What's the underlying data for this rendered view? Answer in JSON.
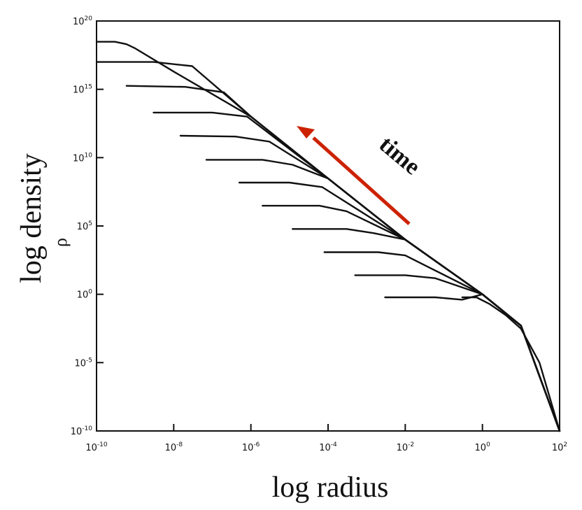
{
  "chart_data": {
    "type": "line",
    "xlabel": "log radius",
    "ylabel": "log density",
    "inner_ylabel": "ρ",
    "annotation": {
      "text": "time",
      "arrow_color": "#cc2200",
      "arrow_direction": "up-left"
    },
    "x_scale": "log",
    "y_scale": "log",
    "xlim": [
      1e-10,
      100.0
    ],
    "ylim": [
      1e-10,
      1e+20
    ],
    "x_ticks": [
      {
        "value": 1e-10,
        "base": "10",
        "exp": "-10"
      },
      {
        "value": 1e-08,
        "base": "10",
        "exp": "-8"
      },
      {
        "value": 1e-06,
        "base": "10",
        "exp": "-6"
      },
      {
        "value": 0.0001,
        "base": "10",
        "exp": "-4"
      },
      {
        "value": 0.01,
        "base": "10",
        "exp": "-2"
      },
      {
        "value": 1.0,
        "base": "10",
        "exp": "0"
      },
      {
        "value": 100.0,
        "base": "10",
        "exp": "2"
      }
    ],
    "y_ticks": [
      {
        "value": 1e-10,
        "base": "10",
        "exp": "-10"
      },
      {
        "value": 1e-05,
        "base": "10",
        "exp": "-5"
      },
      {
        "value": 1.0,
        "base": "10",
        "exp": "0"
      },
      {
        "value": 100000.0,
        "base": "10",
        "exp": "5"
      },
      {
        "value": 10000000000.0,
        "base": "10",
        "exp": "10"
      },
      {
        "value": 1000000000000000.0,
        "base": "10",
        "exp": "15"
      },
      {
        "value": 1e+20,
        "base": "10",
        "exp": "20"
      }
    ],
    "grid": false,
    "series": [
      {
        "points": [
          [
            1e-10,
            3e+18
          ],
          [
            3e-10,
            3e+18
          ],
          [
            6e-10,
            2e+18
          ],
          [
            1e-09,
            1e+18
          ],
          [
            1e-08,
            2e+16
          ],
          [
            1e-06,
            10000000000000.0
          ],
          [
            0.0001,
            300000000.0
          ],
          [
            0.01,
            10000.0
          ],
          [
            1.0,
            1.0
          ],
          [
            10.0,
            0.005
          ],
          [
            100.0,
            1e-10
          ]
        ]
      },
      {
        "points": [
          [
            1e-10,
            1e+17
          ],
          [
            3e-09,
            1e+17
          ],
          [
            3e-08,
            5e+16
          ],
          [
            1e-06,
            10000000000000.0
          ],
          [
            0.0001,
            300000000.0
          ],
          [
            0.01,
            10000.0
          ],
          [
            1.0,
            1.0
          ],
          [
            10.0,
            0.005
          ],
          [
            100.0,
            1e-10
          ]
        ]
      },
      {
        "points": [
          [
            6e-10,
            1800000000000000.0
          ],
          [
            2e-08,
            1500000000000000.0
          ],
          [
            2e-07,
            600000000000000.0
          ],
          [
            1e-06,
            10000000000000.0
          ],
          [
            0.0001,
            300000000.0
          ],
          [
            0.01,
            10000.0
          ],
          [
            1.0,
            1.0
          ],
          [
            10.0,
            0.005
          ],
          [
            100.0,
            1e-10
          ]
        ]
      },
      {
        "points": [
          [
            3e-09,
            20000000000000.0
          ],
          [
            1e-07,
            20000000000000.0
          ],
          [
            8e-07,
            10000000000000.0
          ],
          [
            0.0001,
            300000000.0
          ],
          [
            0.01,
            10000.0
          ],
          [
            1.0,
            1.0
          ],
          [
            10.0,
            0.005
          ],
          [
            100.0,
            1e-10
          ]
        ]
      },
      {
        "points": [
          [
            1.5e-08,
            400000000000.0
          ],
          [
            4e-07,
            350000000000.0
          ],
          [
            3e-06,
            150000000000.0
          ],
          [
            0.0001,
            300000000.0
          ],
          [
            0.01,
            10000.0
          ],
          [
            1.0,
            1.0
          ],
          [
            10.0,
            0.005
          ],
          [
            100.0,
            1e-10
          ]
        ]
      },
      {
        "points": [
          [
            7e-08,
            7000000000.0
          ],
          [
            2e-06,
            7000000000.0
          ],
          [
            1.2e-05,
            3000000000.0
          ],
          [
            0.0001,
            300000000.0
          ],
          [
            0.01,
            10000.0
          ],
          [
            1.0,
            1.0
          ],
          [
            10.0,
            0.005
          ],
          [
            100.0,
            1e-10
          ]
        ]
      },
      {
        "points": [
          [
            5e-07,
            150000000.0
          ],
          [
            1e-05,
            150000000.0
          ],
          [
            7e-05,
            70000000.0
          ],
          [
            0.01,
            10000.0
          ],
          [
            1.0,
            1.0
          ],
          [
            10.0,
            0.005
          ],
          [
            100.0,
            1e-10
          ]
        ]
      },
      {
        "points": [
          [
            2e-06,
            3000000.0
          ],
          [
            6e-05,
            3000000.0
          ],
          [
            0.0003,
            1200000.0
          ],
          [
            0.01,
            10000.0
          ],
          [
            1.0,
            1.0
          ],
          [
            10.0,
            0.005
          ],
          [
            100.0,
            1e-10
          ]
        ]
      },
      {
        "points": [
          [
            1.2e-05,
            60000.0
          ],
          [
            0.0003,
            60000.0
          ],
          [
            0.0015,
            30000.0
          ],
          [
            0.01,
            10000.0
          ],
          [
            1.0,
            1.0
          ],
          [
            10.0,
            0.005
          ],
          [
            100.0,
            1e-10
          ]
        ]
      },
      {
        "points": [
          [
            8e-05,
            1200.0
          ],
          [
            0.002,
            1200.0
          ],
          [
            0.01,
            700.0
          ],
          [
            1.0,
            1.0
          ],
          [
            10.0,
            0.005
          ],
          [
            100.0,
            1e-10
          ]
        ]
      },
      {
        "points": [
          [
            0.0005,
            25.0
          ],
          [
            0.01,
            25.0
          ],
          [
            0.06,
            15.0
          ],
          [
            1.0,
            1.0
          ],
          [
            10.0,
            0.005
          ],
          [
            100.0,
            1e-10
          ]
        ]
      },
      {
        "points": [
          [
            0.003,
            0.6
          ],
          [
            0.06,
            0.6
          ],
          [
            0.3,
            0.4
          ],
          [
            1.0,
            1.0
          ],
          [
            10.0,
            0.005
          ],
          [
            100.0,
            1e-10
          ]
        ]
      },
      {
        "points": [
          [
            0.3,
            0.6
          ],
          [
            0.7,
            0.6
          ],
          [
            1.5,
            0.2
          ],
          [
            4.0,
            0.03
          ],
          [
            10.0,
            0.003
          ],
          [
            30.0,
            1e-05
          ],
          [
            100.0,
            1e-10
          ]
        ]
      }
    ]
  }
}
